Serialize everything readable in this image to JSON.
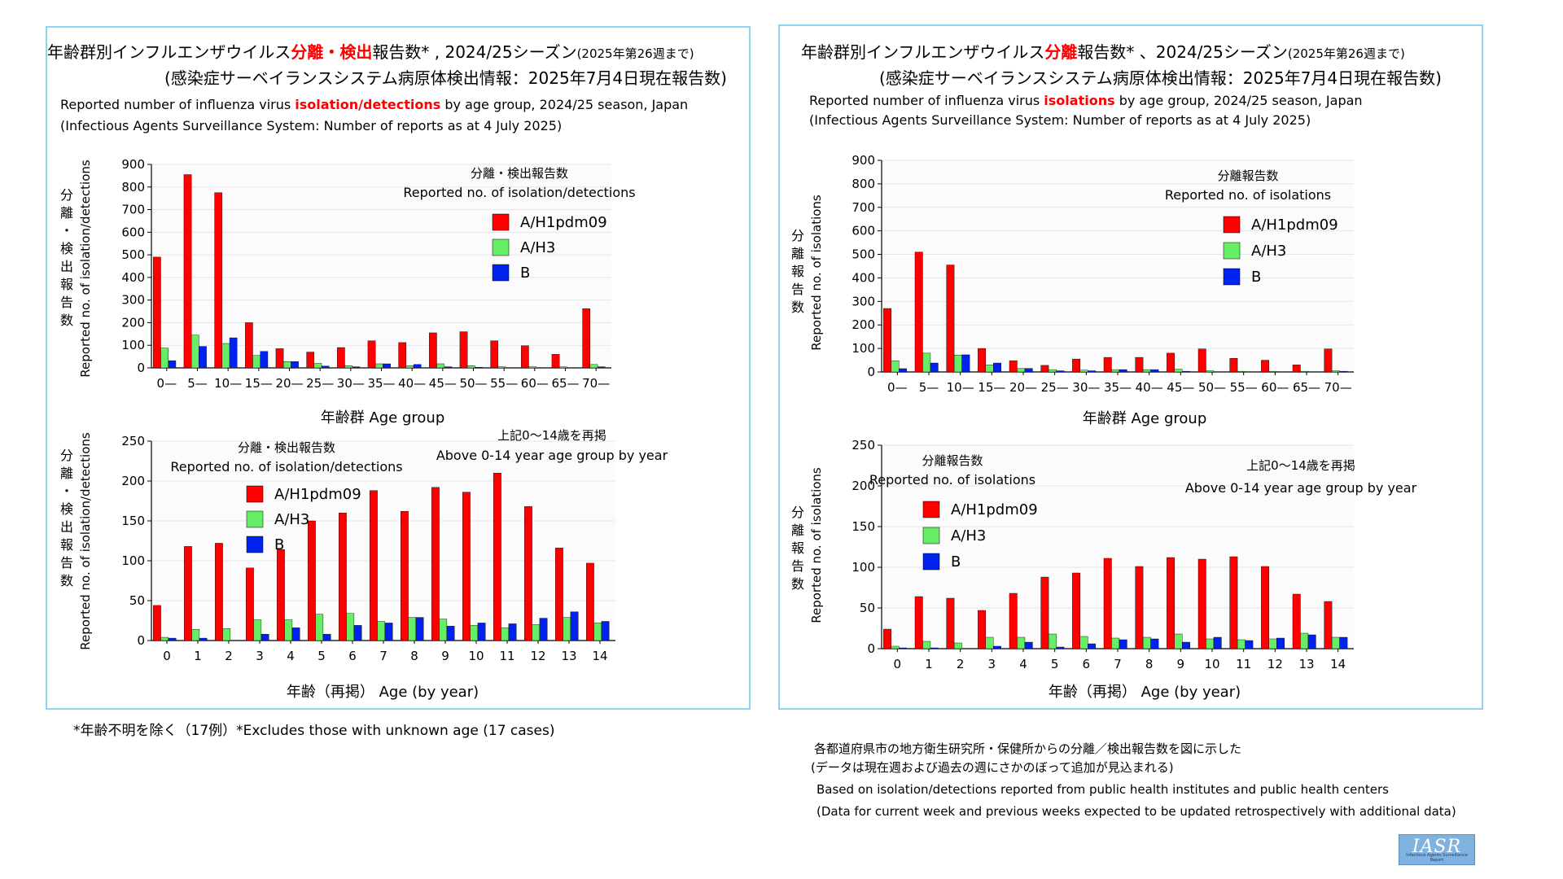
{
  "left": {
    "title_pre": "年齢群別インフルエンザウイルス",
    "title_red": "分離・検出",
    "title_post": "報告数* , 2024/25シーズン",
    "title_small": "(2025年第26週まで)",
    "subtitle": "(感染症サーベイランスシステム病原体検出情報：2025年7月4日現在報告数)",
    "en_pre": "Reported number of influenza virus ",
    "en_red": "isolation/detections",
    "en_post": " by age group, 2024/25 season, Japan",
    "en_line2": "(Infectious Agents Surveillance System: Number of reports as at 4 July 2025)"
  },
  "right": {
    "title_pre": "年齢群別インフルエンザウイルス",
    "title_red": "分離",
    "title_post": "報告数* 、2024/25シーズン",
    "title_small": "(2025年第26週まで)",
    "subtitle": "(感染症サーベイランスシステム病原体検出情報：2025年7月4日現在報告数)",
    "en_pre": "Reported number of influenza virus ",
    "en_red": "isolations",
    "en_post": " by age group, 2024/25 season, Japan",
    "en_line2": "(Infectious Agents Surveillance System: Number of reports as at 4 July 2025)"
  },
  "footnote_left": "*年齢不明を除く（17例）*Excludes those with unknown age (17 cases)",
  "footnote_right": [
    "各都道府県市の地方衛生研究所・保健所からの分離／検出報告数を図に示した",
    "(データは現在週および過去の週にさかのぼって追加が見込まれる)",
    "Based on isolation/detections reported from public health institutes and public health centers",
    "(Data for current week and previous weeks expected to be updated retrospectively with additional data)"
  ],
  "logo": {
    "text": "IASR",
    "subtext": "Infectious Agents Surveillance Report"
  },
  "colors": {
    "A/H1pdm09": "#ff0000",
    "A/H3": "#66ee66",
    "B": "#0022ee",
    "panel_border": "#8fd3f4"
  },
  "chart_data": [
    {
      "id": "left-top",
      "type": "bar",
      "ylabel_jp": "分離・検出報告数",
      "ylabel_en": "Reported no. of isolation/detections",
      "xlabel": "年齢群 Age group",
      "legend_title_jp": "分離・検出報告数",
      "legend_title_en": "Reported no. of isolation/detections",
      "legend_position": "top-right",
      "ylim": [
        0,
        900
      ],
      "yticks": [
        0,
        100,
        200,
        300,
        400,
        500,
        600,
        700,
        800,
        900
      ],
      "categories": [
        "0—",
        "5—",
        "10—",
        "15—",
        "20—",
        "25—",
        "30—",
        "35—",
        "40—",
        "45—",
        "50—",
        "55—",
        "60—",
        "65—",
        "70—"
      ],
      "series": [
        {
          "name": "A/H1pdm09",
          "values": [
            490,
            855,
            775,
            200,
            85,
            70,
            90,
            120,
            112,
            155,
            160,
            120,
            98,
            60,
            262
          ]
        },
        {
          "name": "A/H3",
          "values": [
            88,
            145,
            108,
            55,
            28,
            20,
            10,
            18,
            10,
            18,
            10,
            5,
            5,
            5,
            15
          ]
        },
        {
          "name": "B",
          "values": [
            32,
            95,
            133,
            73,
            28,
            8,
            5,
            18,
            15,
            5,
            3,
            0,
            0,
            0,
            5
          ]
        }
      ]
    },
    {
      "id": "left-bottom",
      "type": "bar",
      "ylabel_jp": "分離・検出報告数",
      "ylabel_en": "Reported no. of isolation/detections",
      "xlabel": "年齢（再掲） Age (by year)",
      "legend_title_jp": "分離・検出報告数",
      "legend_title_en": "Reported no. of isolation/detections",
      "note_jp": "上記0～14歳を再掲",
      "note_en": "Above 0-14 year age group by year",
      "legend_position": "top-left",
      "ylim": [
        0,
        250
      ],
      "yticks": [
        0,
        50,
        100,
        150,
        200,
        250
      ],
      "categories": [
        "0",
        "1",
        "2",
        "3",
        "4",
        "5",
        "6",
        "7",
        "8",
        "9",
        "10",
        "11",
        "12",
        "13",
        "14"
      ],
      "series": [
        {
          "name": "A/H1pdm09",
          "values": [
            44,
            118,
            122,
            91,
            114,
            150,
            160,
            188,
            162,
            192,
            186,
            210,
            168,
            116,
            97
          ]
        },
        {
          "name": "A/H3",
          "values": [
            4,
            14,
            15,
            26,
            26,
            33,
            34,
            24,
            29,
            27,
            19,
            16,
            20,
            29,
            22
          ]
        },
        {
          "name": "B",
          "values": [
            3,
            3,
            0,
            8,
            16,
            8,
            19,
            22,
            29,
            18,
            22,
            21,
            28,
            36,
            24
          ]
        }
      ]
    },
    {
      "id": "right-top",
      "type": "bar",
      "ylabel_jp": "分離報告数",
      "ylabel_en": "Reported no. of isolations",
      "xlabel": "年齢群 Age group",
      "legend_title_jp": "分離報告数",
      "legend_title_en": "Reported no. of isolations",
      "legend_position": "top-right",
      "ylim": [
        0,
        900
      ],
      "yticks": [
        0,
        100,
        200,
        300,
        400,
        500,
        600,
        700,
        800,
        900
      ],
      "categories": [
        "0—",
        "5—",
        "10—",
        "15—",
        "20—",
        "25—",
        "30—",
        "35—",
        "40—",
        "45—",
        "50—",
        "55—",
        "60—",
        "65—",
        "70—"
      ],
      "series": [
        {
          "name": "A/H1pdm09",
          "values": [
            270,
            510,
            455,
            100,
            48,
            28,
            55,
            62,
            62,
            80,
            98,
            58,
            50,
            30,
            98
          ]
        },
        {
          "name": "A/H3",
          "values": [
            48,
            80,
            72,
            30,
            15,
            10,
            8,
            10,
            10,
            12,
            5,
            3,
            3,
            3,
            5
          ]
        },
        {
          "name": "B",
          "values": [
            14,
            38,
            73,
            38,
            15,
            5,
            5,
            10,
            10,
            3,
            0,
            0,
            0,
            0,
            3
          ]
        }
      ]
    },
    {
      "id": "right-bottom",
      "type": "bar",
      "ylabel_jp": "分離報告数",
      "ylabel_en": "Reported no. of isolations",
      "xlabel": "年齢（再掲） Age (by year)",
      "legend_title_jp": "分離報告数",
      "legend_title_en": "Reported no. of isolations",
      "note_jp": "上記0～14歳を再掲",
      "note_en": "Above 0-14 year age group by year",
      "legend_position": "top-left",
      "ylim": [
        0,
        250
      ],
      "yticks": [
        0,
        50,
        100,
        150,
        200,
        250
      ],
      "categories": [
        "0",
        "1",
        "2",
        "3",
        "4",
        "5",
        "6",
        "7",
        "8",
        "9",
        "10",
        "11",
        "12",
        "13",
        "14"
      ],
      "series": [
        {
          "name": "A/H1pdm09",
          "values": [
            24,
            64,
            62,
            47,
            68,
            88,
            93,
            111,
            101,
            112,
            110,
            113,
            101,
            67,
            58
          ]
        },
        {
          "name": "A/H3",
          "values": [
            3,
            9,
            7,
            14,
            14,
            18,
            15,
            13,
            14,
            18,
            12,
            11,
            12,
            19,
            14
          ]
        },
        {
          "name": "B",
          "values": [
            1,
            1,
            0,
            3,
            8,
            2,
            6,
            11,
            12,
            8,
            14,
            10,
            13,
            17,
            14
          ]
        }
      ]
    }
  ]
}
